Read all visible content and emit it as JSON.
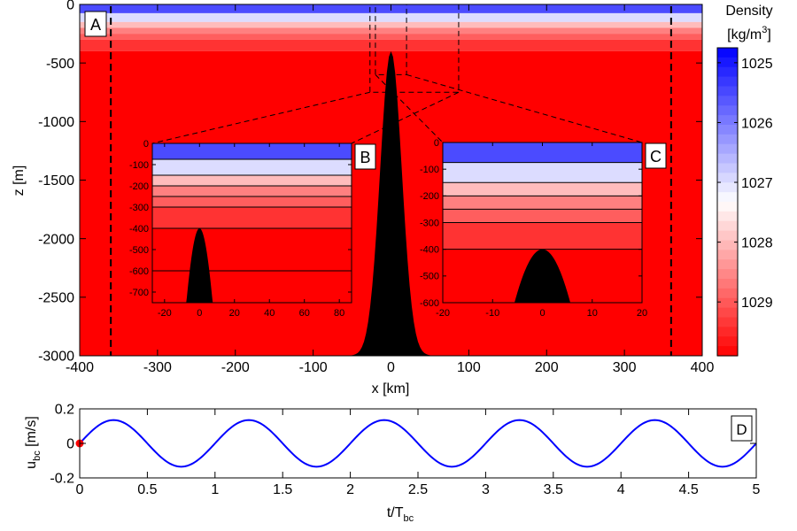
{
  "chart_data": [
    {
      "id": "A",
      "type": "heatmap",
      "panel_label": "A",
      "xlabel": "x [km]",
      "ylabel": "z [m]",
      "xlim": [
        -400,
        400
      ],
      "ylim": [
        -3000,
        0
      ],
      "xticks": [
        "-400",
        "-300",
        "-200",
        "-100",
        "0",
        "100",
        "200",
        "300",
        "400"
      ],
      "xtick_values": [
        -400,
        -300,
        -200,
        -100,
        0,
        100,
        200,
        300,
        400
      ],
      "yticks": [
        "0",
        "-500",
        "-1000",
        "-1500",
        "-2000",
        "-2500",
        "-3000"
      ],
      "ytick_values": [
        0,
        -500,
        -1000,
        -1500,
        -2000,
        -2500,
        -3000
      ],
      "layers": [
        {
          "top": 0,
          "bottom": -75,
          "color": "#4b4bff"
        },
        {
          "top": -75,
          "bottom": -150,
          "color": "#dcdcff"
        },
        {
          "top": -150,
          "bottom": -200,
          "color": "#ffbcbc"
        },
        {
          "top": -200,
          "bottom": -250,
          "color": "#ff8080"
        },
        {
          "top": -250,
          "bottom": -300,
          "color": "#ff5e5e"
        },
        {
          "top": -300,
          "bottom": -400,
          "color": "#ff3333"
        },
        {
          "top": -400,
          "bottom": -3000,
          "color": "#ff0000"
        }
      ],
      "ridge": {
        "peak_depth": -400,
        "base_depth": -3000,
        "half_width_km": 14
      },
      "sponge_lines_x": [
        -360,
        360
      ],
      "zoom_box_B": {
        "x": [
          -27,
          87
        ],
        "z": [
          -750,
          0
        ]
      },
      "zoom_box_C": {
        "x": [
          -20,
          20
        ],
        "z": [
          -600,
          0
        ]
      }
    },
    {
      "id": "B",
      "type": "heatmap",
      "panel_label": "B",
      "xlim": [
        -27,
        87
      ],
      "ylim": [
        -750,
        0
      ],
      "xticks": [
        "-20",
        "0",
        "20",
        "40",
        "60",
        "80"
      ],
      "xtick_values": [
        -20,
        0,
        20,
        40,
        60,
        80
      ],
      "yticks": [
        "0",
        "-100",
        "-200",
        "-300",
        "-400",
        "-500",
        "-600",
        "-700"
      ],
      "ytick_values": [
        0,
        -100,
        -200,
        -300,
        -400,
        -500,
        -600,
        -700
      ],
      "interfaces": [
        -75,
        -150,
        -200,
        -250,
        -300,
        -400,
        -600
      ]
    },
    {
      "id": "C",
      "type": "heatmap",
      "panel_label": "C",
      "xlim": [
        -20,
        20
      ],
      "ylim": [
        -600,
        0
      ],
      "xticks": [
        "-20",
        "-10",
        "0",
        "10",
        "20"
      ],
      "xtick_values": [
        -20,
        -10,
        0,
        10,
        20
      ],
      "yticks": [
        "0",
        "-100",
        "-200",
        "-300",
        "-400",
        "-500",
        "-600"
      ],
      "ytick_values": [
        0,
        -100,
        -200,
        -300,
        -400,
        -500,
        -600
      ],
      "interfaces": [
        -75,
        -150,
        -200,
        -250,
        -300,
        -400
      ]
    },
    {
      "id": "colorbar",
      "type": "heatmap",
      "title_line1": "Density",
      "title_line2_pre": "[kg/m",
      "title_line2_sup": "3",
      "title_line2_post": "]",
      "range": [
        1024.75,
        1029.9
      ],
      "ticks": [
        "1025",
        "1026",
        "1027",
        "1028",
        "1029"
      ],
      "tick_values": [
        1025,
        1026,
        1027,
        1028,
        1029
      ],
      "color_low": "#0000ff",
      "color_mid": "#ffffff",
      "color_high": "#ff0000",
      "levels": 32
    },
    {
      "id": "D",
      "type": "line",
      "panel_label": "D",
      "xlabel_main": "t/T",
      "xlabel_sub": "bc",
      "ylabel_main": "u",
      "ylabel_sub": "bc",
      "ylabel_post": " [m/s]",
      "xlim": [
        0,
        5
      ],
      "ylim": [
        -0.2,
        0.2
      ],
      "xticks": [
        "0",
        "0.5",
        "1",
        "1.5",
        "2",
        "2.5",
        "3",
        "3.5",
        "4",
        "4.5",
        "5"
      ],
      "xtick_values": [
        0,
        0.5,
        1,
        1.5,
        2,
        2.5,
        3,
        3.5,
        4,
        4.5,
        5
      ],
      "yticks": [
        "0.2",
        "0",
        "-0.2"
      ],
      "ytick_values": [
        0.2,
        0,
        -0.2
      ],
      "series": [
        {
          "name": "u_bc",
          "amplitude": 0.135,
          "period": 1,
          "color": "#0000ff"
        }
      ],
      "marker": {
        "x": 0,
        "y": 0,
        "color": "#ff0000"
      }
    }
  ]
}
